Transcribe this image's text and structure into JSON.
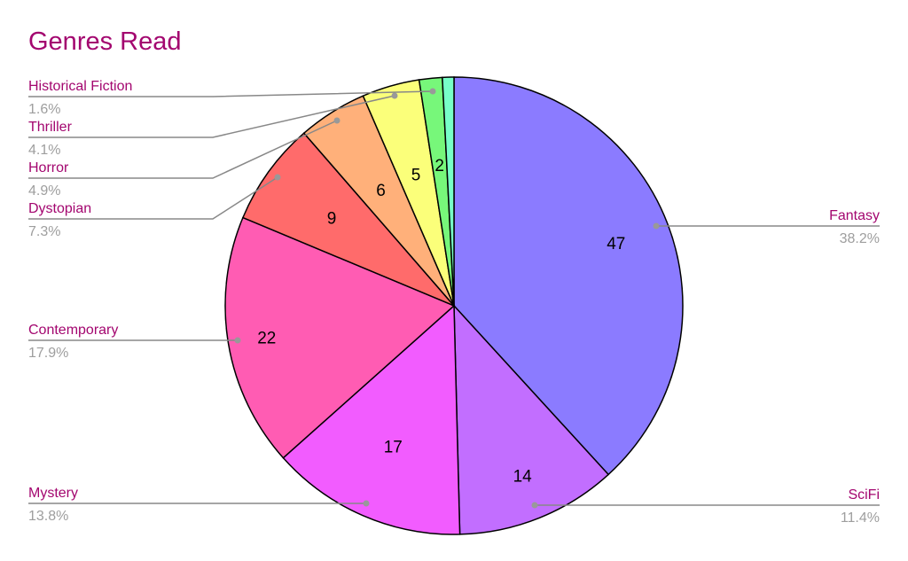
{
  "chart_data": {
    "type": "pie",
    "title": "Genres Read",
    "start": "top, clockwise",
    "slices": [
      {
        "label": "Fantasy",
        "value": 47,
        "percent": "38.2%",
        "color": "#8b7bff",
        "show_label": true
      },
      {
        "label": "SciFi",
        "value": 14,
        "percent": "11.4%",
        "color": "#c26eff",
        "show_label": true
      },
      {
        "label": "Mystery",
        "value": 17,
        "percent": "13.8%",
        "color": "#f25cff",
        "show_label": true
      },
      {
        "label": "Contemporary",
        "value": 22,
        "percent": "17.9%",
        "color": "#ff5cb3",
        "show_label": true
      },
      {
        "label": "Dystopian",
        "value": 9,
        "percent": "7.3%",
        "color": "#ff6b6b",
        "show_label": true
      },
      {
        "label": "Horror",
        "value": 6,
        "percent": "4.9%",
        "color": "#ffb07a",
        "show_label": true
      },
      {
        "label": "Thriller",
        "value": 5,
        "percent": "4.1%",
        "color": "#fbff7a",
        "show_label": true
      },
      {
        "label": "Historical Fiction",
        "value": 2,
        "percent": "1.6%",
        "color": "#77f77a",
        "show_label": true
      },
      {
        "label": "",
        "value": 1,
        "percent": "",
        "color": "#77ffc8",
        "show_label": false
      }
    ],
    "legend": "leader-line labels"
  }
}
